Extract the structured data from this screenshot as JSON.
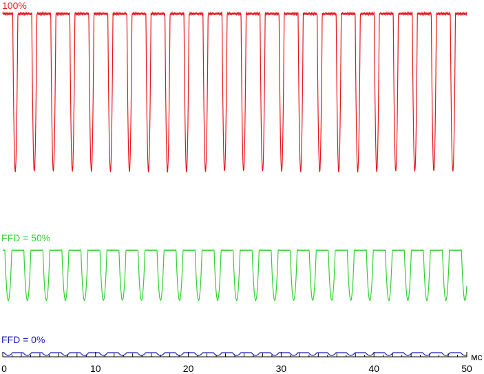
{
  "chart_data": {
    "type": "line",
    "xlabel": "мс",
    "xlim": [
      0,
      50
    ],
    "xticks": [
      "0",
      "10",
      "20",
      "30",
      "40",
      "50"
    ],
    "grid": false,
    "colors": {
      "red": "#e8141c",
      "green": "#2fd12f",
      "blue": "#1a1ab8"
    },
    "series": [
      {
        "name": "100%",
        "color": "red",
        "period_ms": 2.05,
        "first_dip_ms": 1.35,
        "level_high_pct": 100,
        "level_dip_pct": 2,
        "dip_width_ms": 0.55
      },
      {
        "name": "FFD = 50%",
        "color": "green",
        "period_ms": 2.05,
        "first_dip_ms": 0.6,
        "level_high_pct": 50,
        "level_dip_pct": 2,
        "dip_width_ms": 0.75
      },
      {
        "name": "FFD = 0%",
        "color": "blue",
        "period_ms": 2.05,
        "first_dip_ms": 0.6,
        "level_high_pct": 0.8,
        "level_dip_pct": 0,
        "dip_width_ms": 0.9
      }
    ]
  }
}
